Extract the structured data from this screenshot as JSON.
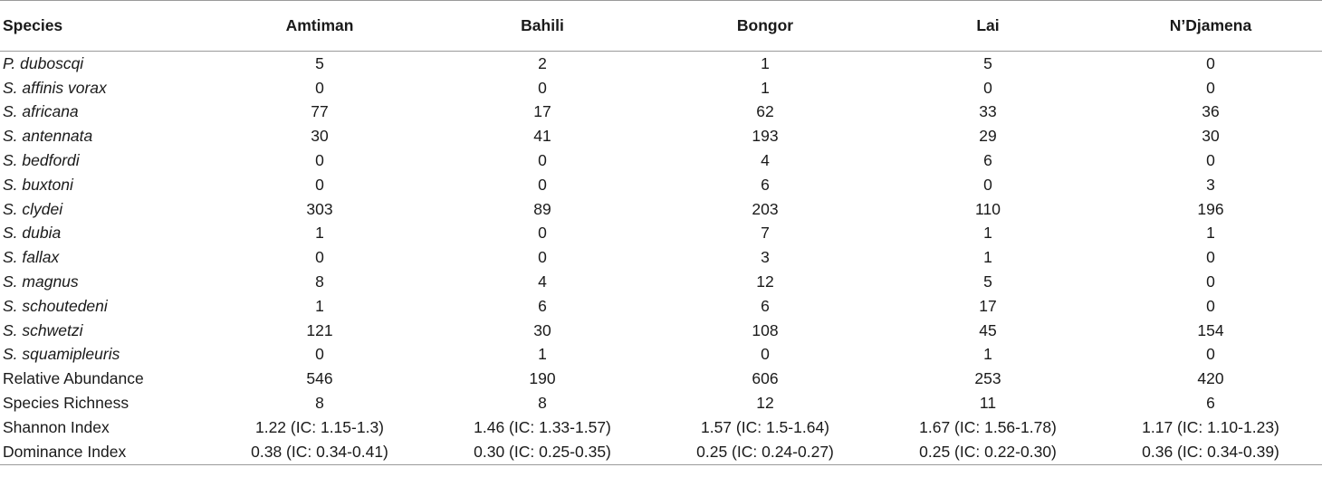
{
  "table": {
    "headers": [
      "Species",
      "Amtiman",
      "Bahili",
      "Bongor",
      "Lai",
      "N’Djamena"
    ],
    "rows": [
      {
        "label": "P. duboscqi",
        "italic": true,
        "values": [
          "5",
          "2",
          "1",
          "5",
          "0"
        ]
      },
      {
        "label": "S. affinis vorax",
        "italic": true,
        "values": [
          "0",
          "0",
          "1",
          "0",
          "0"
        ]
      },
      {
        "label": "S. africana",
        "italic": true,
        "values": [
          "77",
          "17",
          "62",
          "33",
          "36"
        ]
      },
      {
        "label": "S. antennata",
        "italic": true,
        "values": [
          "30",
          "41",
          "193",
          "29",
          "30"
        ]
      },
      {
        "label": "S. bedfordi",
        "italic": true,
        "values": [
          "0",
          "0",
          "4",
          "6",
          "0"
        ]
      },
      {
        "label": "S. buxtoni",
        "italic": true,
        "values": [
          "0",
          "0",
          "6",
          "0",
          "3"
        ]
      },
      {
        "label": "S. clydei",
        "italic": true,
        "values": [
          "303",
          "89",
          "203",
          "110",
          "196"
        ]
      },
      {
        "label": "S. dubia",
        "italic": true,
        "values": [
          "1",
          "0",
          "7",
          "1",
          "1"
        ]
      },
      {
        "label": "S. fallax",
        "italic": true,
        "values": [
          "0",
          "0",
          "3",
          "1",
          "0"
        ]
      },
      {
        "label": "S. magnus",
        "italic": true,
        "values": [
          "8",
          "4",
          "12",
          "5",
          "0"
        ]
      },
      {
        "label": "S. schoutedeni",
        "italic": true,
        "values": [
          "1",
          "6",
          "6",
          "17",
          "0"
        ]
      },
      {
        "label": "S. schwetzi",
        "italic": true,
        "values": [
          "121",
          "30",
          "108",
          "45",
          "154"
        ]
      },
      {
        "label": "S. squamipleuris",
        "italic": true,
        "values": [
          "0",
          "1",
          "0",
          "1",
          "0"
        ]
      },
      {
        "label": "Relative Abundance",
        "italic": false,
        "values": [
          "546",
          "190",
          "606",
          "253",
          "420"
        ]
      },
      {
        "label": "Species Richness",
        "italic": false,
        "values": [
          "8",
          "8",
          "12",
          "11",
          "6"
        ]
      },
      {
        "label": "Shannon Index",
        "italic": false,
        "values": [
          "1.22 (IC: 1.15-1.3)",
          "1.46 (IC: 1.33-1.57)",
          "1.57 (IC: 1.5-1.64)",
          "1.67 (IC: 1.56-1.78)",
          "1.17 (IC: 1.10-1.23)"
        ]
      },
      {
        "label": "Dominance Index",
        "italic": false,
        "values": [
          "0.38 (IC: 0.34-0.41)",
          "0.30 (IC: 0.25-0.35)",
          "0.25 (IC: 0.24-0.27)",
          "0.25 (IC: 0.22-0.30)",
          "0.36 (IC: 0.34-0.39)"
        ]
      }
    ]
  }
}
